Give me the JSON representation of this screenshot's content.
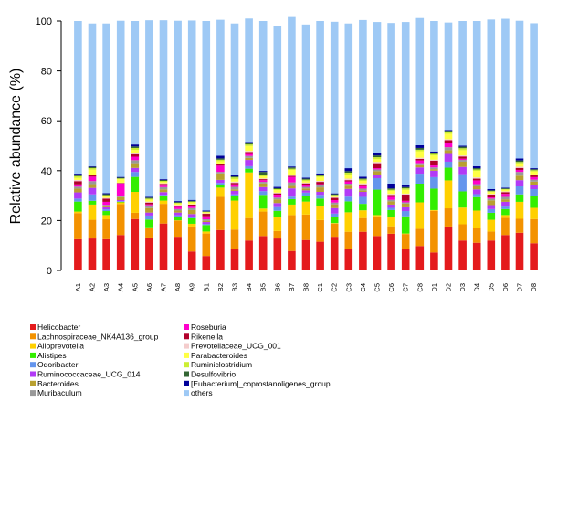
{
  "chart_data": {
    "type": "bar",
    "stacked": true,
    "title": "",
    "xlabel": "",
    "ylabel": "Relative abundance (%)",
    "ylim": [
      0,
      100
    ],
    "yticks": [
      0,
      20,
      40,
      60,
      80,
      100
    ],
    "grid": false,
    "legend_position": "bottom-left, two columns",
    "categories": [
      "A1",
      "A2",
      "A3",
      "A4",
      "A5",
      "A6",
      "A7",
      "A8",
      "A9",
      "B1",
      "B2",
      "B3",
      "B4",
      "B5",
      "B6",
      "B7",
      "B8",
      "C1",
      "C2",
      "C3",
      "C4",
      "C5",
      "C6",
      "C7",
      "C8",
      "D1",
      "D2",
      "D3",
      "D4",
      "D5",
      "D6",
      "D7",
      "D8"
    ],
    "series": [
      {
        "name": "Helicobacter",
        "color": "#e41a1c",
        "values": [
          12.5,
          12.8,
          12.5,
          14.2,
          20.6,
          13.2,
          18.8,
          13.5,
          7.6,
          5.8,
          16.2,
          8.5,
          12.0,
          13.8,
          12.8,
          7.8,
          12.2,
          11.5,
          13.5,
          8.5,
          15.5,
          13.8,
          14.7,
          8.6,
          9.8,
          7.2,
          17.6,
          12.0,
          11.1,
          12.0,
          14.2,
          15.1,
          10.9
        ]
      },
      {
        "name": "Lachnospiraceae_NK4A136_group",
        "color": "#f39200",
        "values": [
          10.5,
          7.5,
          8.0,
          12.4,
          2.5,
          3.8,
          7.9,
          6.5,
          10.0,
          9.0,
          13.3,
          7.9,
          9.0,
          9.8,
          3.0,
          14.4,
          10.2,
          8.7,
          5.3,
          7.0,
          5.5,
          7.9,
          3.0,
          6.0,
          6.9,
          16.7,
          7.3,
          6.5,
          6.0,
          3.6,
          6.9,
          5.6,
          9.7
        ]
      },
      {
        "name": "Alloprevotella",
        "color": "#ffd000",
        "values": [
          0.6,
          6.1,
          1.7,
          0.7,
          8.4,
          0.3,
          1.3,
          0.1,
          1.1,
          0.8,
          3.7,
          11.6,
          18.3,
          1.2,
          5.8,
          4.2,
          5.2,
          5.6,
          0.2,
          7.8,
          3.1,
          0.5,
          3.7,
          0.2,
          10.6,
          0.3,
          11.2,
          6.7,
          6.9,
          4.7,
          1.1,
          6.8,
          4.5
        ]
      },
      {
        "name": "Alistipes",
        "color": "#33ee00",
        "values": [
          4.0,
          1.5,
          1.6,
          0.2,
          6.0,
          3.1,
          1.8,
          1.4,
          2.2,
          2.6,
          1.0,
          1.8,
          1.5,
          5.5,
          2.3,
          2.2,
          2.2,
          3.0,
          2.5,
          4.4,
          2.6,
          10.2,
          2.8,
          6.9,
          7.5,
          8.6,
          5.1,
          6.5,
          5.4,
          2.8,
          2.4,
          3.0,
          4.7
        ]
      },
      {
        "name": "Odoribacter",
        "color": "#6495ed",
        "values": [
          1.2,
          2.6,
          0.7,
          0.3,
          2.0,
          1.6,
          0.5,
          0.6,
          0.6,
          0.4,
          0.9,
          0.7,
          1.0,
          1.5,
          1.5,
          1.0,
          1.4,
          1.5,
          1.3,
          1.9,
          2.8,
          4.6,
          0.9,
          2.1,
          4.0,
          4.6,
          2.4,
          6.9,
          1.2,
          1.5,
          1.0,
          3.2,
          2.8
        ]
      },
      {
        "name": "Ruminococcaceae_UCG_014",
        "color": "#b23af6",
        "values": [
          2.5,
          2.6,
          0.8,
          0.4,
          1.6,
          1.2,
          1.1,
          1.1,
          1.1,
          0.8,
          1.2,
          1.4,
          2.5,
          1.6,
          1.6,
          3.3,
          0.9,
          1.2,
          2.2,
          3.1,
          2.0,
          1.2,
          1.3,
          1.5,
          2.5,
          2.6,
          3.1,
          2.9,
          1.9,
          1.6,
          1.9,
          2.5,
          1.7
        ]
      },
      {
        "name": "Bacteroides",
        "color": "#b8a030",
        "values": [
          1.5,
          1.5,
          0.5,
          1.2,
          1.9,
          1.8,
          1.1,
          0.8,
          1.6,
          0.5,
          2.6,
          0.6,
          0.8,
          1.5,
          1.5,
          1.0,
          0.8,
          1.8,
          1.5,
          1.3,
          0.6,
          1.6,
          1.3,
          1.5,
          0.9,
          0.6,
          1.5,
          2.1,
          1.2,
          1.9,
          1.0,
          1.8,
          1.3
        ]
      },
      {
        "name": "Muribaculum",
        "color": "#999999",
        "values": [
          0.8,
          1.2,
          0.5,
          0.6,
          1.2,
          1.1,
          0.9,
          0.6,
          0.8,
          0.6,
          0.6,
          1.0,
          0.8,
          0.6,
          0.7,
          1.4,
          0.6,
          0.8,
          0.7,
          0.8,
          0.7,
          0.7,
          0.6,
          0.5,
          0.8,
          0.7,
          1.2,
          0.7,
          0.9,
          0.7,
          1.0,
          1.5,
          0.8
        ]
      },
      {
        "name": "Roseburia",
        "color": "#ff00cc",
        "values": [
          0.9,
          1.8,
          1.2,
          4.8,
          1.4,
          0.4,
          0.6,
          0.9,
          0.8,
          1.2,
          2.5,
          1.0,
          0.8,
          0.7,
          1.2,
          2.2,
          0.8,
          0.5,
          1.0,
          0.9,
          1.0,
          0.5,
          1.2,
          0.6,
          1.1,
          0.8,
          1.8,
          0.5,
          1.5,
          0.5,
          1.2,
          0.8,
          1.0
        ]
      },
      {
        "name": "Rikenella",
        "color": "#b2002b",
        "values": [
          1.3,
          0.5,
          1.3,
          0.2,
          1.0,
          0.7,
          0.7,
          0.5,
          0.6,
          1.0,
          0.5,
          0.6,
          0.8,
          0.4,
          0.5,
          0.4,
          0.6,
          0.9,
          0.9,
          0.5,
          0.7,
          2.0,
          0.8,
          2.5,
          0.6,
          1.9,
          1.0,
          0.9,
          0.7,
          1.1,
          0.7,
          0.8,
          0.7
        ]
      },
      {
        "name": "Prevotellaceae_UCG_001",
        "color": "#f4cccc",
        "values": [
          0.5,
          0.3,
          0.3,
          0.2,
          0.4,
          0.4,
          0.3,
          0.3,
          0.2,
          0.2,
          0.4,
          0.5,
          0.4,
          0.3,
          0.3,
          0.4,
          0.3,
          0.4,
          0.3,
          0.6,
          0.4,
          0.5,
          0.4,
          0.4,
          0.5,
          0.4,
          0.4,
          0.4,
          0.5,
          0.3,
          0.3,
          0.5,
          0.4
        ]
      },
      {
        "name": "Parabacteroides",
        "color": "#ffff44",
        "values": [
          0.8,
          2.0,
          0.8,
          1.4,
          1.3,
          0.8,
          0.5,
          0.5,
          0.7,
          0.4,
          0.9,
          1.0,
          2.0,
          0.8,
          1.0,
          2.0,
          0.6,
          1.6,
          0.6,
          1.6,
          1.0,
          1.1,
          1.2,
          1.5,
          2.6,
          1.7,
          2.2,
          2.1,
          2.6,
          0.7,
          0.6,
          1.3,
          1.2
        ]
      },
      {
        "name": "Ruminiclostridium",
        "color": "#ccee33",
        "values": [
          0.7,
          0.6,
          0.3,
          0.3,
          0.8,
          0.4,
          0.4,
          0.3,
          0.3,
          0.2,
          0.6,
          0.7,
          0.6,
          0.6,
          0.4,
          0.5,
          0.6,
          0.4,
          0.3,
          0.8,
          0.6,
          0.8,
          0.5,
          0.6,
          0.6,
          0.6,
          0.6,
          0.8,
          0.6,
          0.4,
          0.3,
          0.6,
          0.5
        ]
      },
      {
        "name": "Desulfovibrio",
        "color": "#336633",
        "values": [
          0.5,
          0.5,
          0.4,
          0.3,
          0.6,
          0.4,
          0.4,
          0.3,
          0.3,
          0.2,
          0.5,
          0.4,
          0.6,
          1.2,
          0.4,
          0.5,
          0.4,
          0.5,
          0.3,
          0.6,
          0.4,
          0.7,
          0.5,
          0.5,
          0.7,
          0.5,
          0.6,
          0.6,
          0.5,
          0.3,
          0.3,
          0.6,
          0.4
        ]
      },
      {
        "name": "[Eubacterium]_coprostanoligenes_group",
        "color": "#000099",
        "values": [
          0.5,
          0.3,
          0.4,
          0.3,
          0.8,
          0.3,
          0.3,
          0.4,
          0.4,
          0.3,
          1.1,
          0.5,
          0.4,
          0.4,
          0.5,
          0.4,
          0.4,
          0.5,
          0.3,
          1.2,
          0.7,
          1.0,
          1.9,
          0.8,
          1.1,
          0.5,
          0.3,
          0.4,
          0.8,
          0.5,
          0.3,
          0.8,
          0.4
        ]
      },
      {
        "name": "others",
        "color": "#9ec9f5",
        "values": [
          61.2,
          57.2,
          68.0,
          62.6,
          49.5,
          70.8,
          63.7,
          72.3,
          71.9,
          76.0,
          54.5,
          60.8,
          49.5,
          60.1,
          64.5,
          59.9,
          61.4,
          61.1,
          68.8,
          58.0,
          62.8,
          52.5,
          64.4,
          65.4,
          51.0,
          52.3,
          43.1,
          50.0,
          58.2,
          68.0,
          67.7,
          55.2,
          58.1
        ]
      }
    ]
  }
}
